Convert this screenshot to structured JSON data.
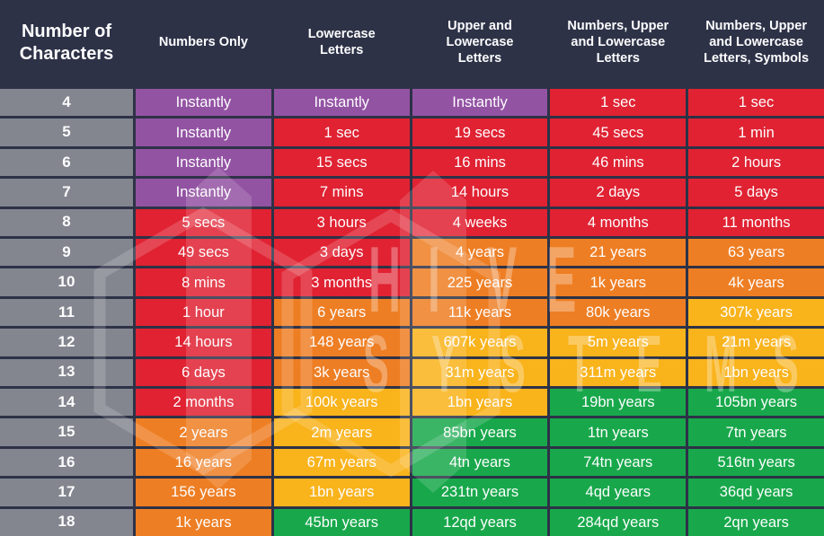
{
  "palette": {
    "navy": "#2d3247",
    "gray": "#83868f",
    "purple": "#9353a3",
    "red": "#e02232",
    "orange": "#ee7e23",
    "yellow": "#f9b31b",
    "green": "#18a84b",
    "cell_text": "#fdfdfe",
    "watermark": "#ffffff"
  },
  "watermark": {
    "line1": "HIVE",
    "line2": "SYSTEMS"
  },
  "chart_data": {
    "type": "table",
    "corner_header": "Number of\nCharacters",
    "columns": [
      "Numbers Only",
      "Lowercase\nLetters",
      "Upper and\nLowercase\nLetters",
      "Numbers, Upper\nand Lowercase\nLetters",
      "Numbers, Upper\nand Lowercase\nLetters, Symbols"
    ],
    "rows": [
      {
        "characters": "4",
        "values": [
          "Instantly",
          "Instantly",
          "Instantly",
          "1 sec",
          "1 sec"
        ],
        "colors": [
          "purple",
          "purple",
          "purple",
          "red",
          "red"
        ]
      },
      {
        "characters": "5",
        "values": [
          "Instantly",
          "1 sec",
          "19 secs",
          "45 secs",
          "1 min"
        ],
        "colors": [
          "purple",
          "red",
          "red",
          "red",
          "red"
        ]
      },
      {
        "characters": "6",
        "values": [
          "Instantly",
          "15 secs",
          "16 mins",
          "46 mins",
          "2 hours"
        ],
        "colors": [
          "purple",
          "red",
          "red",
          "red",
          "red"
        ]
      },
      {
        "characters": "7",
        "values": [
          "Instantly",
          "7 mins",
          "14 hours",
          "2 days",
          "5 days"
        ],
        "colors": [
          "purple",
          "red",
          "red",
          "red",
          "red"
        ]
      },
      {
        "characters": "8",
        "values": [
          "5 secs",
          "3 hours",
          "4 weeks",
          "4 months",
          "11 months"
        ],
        "colors": [
          "red",
          "red",
          "red",
          "red",
          "red"
        ]
      },
      {
        "characters": "9",
        "values": [
          "49 secs",
          "3 days",
          "4 years",
          "21 years",
          "63 years"
        ],
        "colors": [
          "red",
          "red",
          "orange",
          "orange",
          "orange"
        ]
      },
      {
        "characters": "10",
        "values": [
          "8 mins",
          "3 months",
          "225 years",
          "1k years",
          "4k years"
        ],
        "colors": [
          "red",
          "red",
          "orange",
          "orange",
          "orange"
        ]
      },
      {
        "characters": "11",
        "values": [
          "1 hour",
          "6 years",
          "11k years",
          "80k years",
          "307k years"
        ],
        "colors": [
          "red",
          "orange",
          "orange",
          "orange",
          "yellow"
        ]
      },
      {
        "characters": "12",
        "values": [
          "14 hours",
          "148 years",
          "607k years",
          "5m years",
          "21m years"
        ],
        "colors": [
          "red",
          "orange",
          "yellow",
          "yellow",
          "yellow"
        ]
      },
      {
        "characters": "13",
        "values": [
          "6 days",
          "3k years",
          "31m years",
          "311m years",
          "1bn years"
        ],
        "colors": [
          "red",
          "orange",
          "yellow",
          "yellow",
          "yellow"
        ]
      },
      {
        "characters": "14",
        "values": [
          "2 months",
          "100k years",
          "1bn years",
          "19bn years",
          "105bn years"
        ],
        "colors": [
          "red",
          "yellow",
          "yellow",
          "green",
          "green"
        ]
      },
      {
        "characters": "15",
        "values": [
          "2 years",
          "2m years",
          "85bn years",
          "1tn years",
          "7tn years"
        ],
        "colors": [
          "orange",
          "yellow",
          "green",
          "green",
          "green"
        ]
      },
      {
        "characters": "16",
        "values": [
          "16 years",
          "67m years",
          "4tn years",
          "74tn years",
          "516tn years"
        ],
        "colors": [
          "orange",
          "yellow",
          "green",
          "green",
          "green"
        ]
      },
      {
        "characters": "17",
        "values": [
          "156 years",
          "1bn years",
          "231tn years",
          "4qd years",
          "36qd years"
        ],
        "colors": [
          "orange",
          "yellow",
          "green",
          "green",
          "green"
        ]
      },
      {
        "characters": "18",
        "values": [
          "1k years",
          "45bn years",
          "12qd years",
          "284qd years",
          "2qn years"
        ],
        "colors": [
          "orange",
          "green",
          "green",
          "green",
          "green"
        ]
      }
    ]
  }
}
